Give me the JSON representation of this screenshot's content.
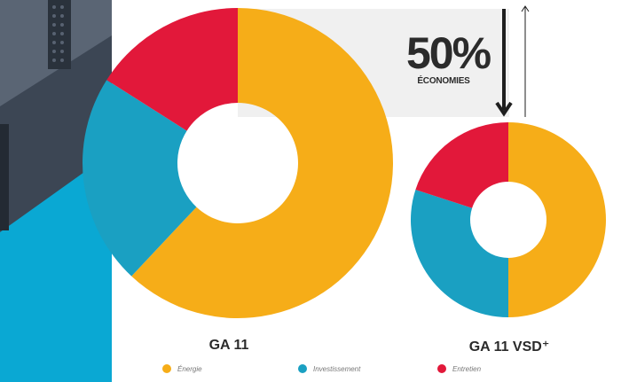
{
  "savings": {
    "percent": "50%",
    "label": "ÉCONOMIES"
  },
  "colors": {
    "energy": "#f6ad18",
    "investment": "#1aa0c2",
    "maintenance": "#e2183a"
  },
  "chart_data": {
    "type": "pie",
    "series_labels": [
      "Énergie",
      "Investissement",
      "Entretien"
    ],
    "charts": [
      {
        "title": "GA 11",
        "values": [
          62,
          22,
          16
        ]
      },
      {
        "title": "GA 11 VSD⁺",
        "values": [
          50,
          30,
          20
        ]
      }
    ]
  },
  "legend": [
    {
      "label": "Énergie",
      "color": "#f6ad18"
    },
    {
      "label": "Investissement",
      "color": "#1aa0c2"
    },
    {
      "label": "Entretien",
      "color": "#e2183a"
    }
  ]
}
